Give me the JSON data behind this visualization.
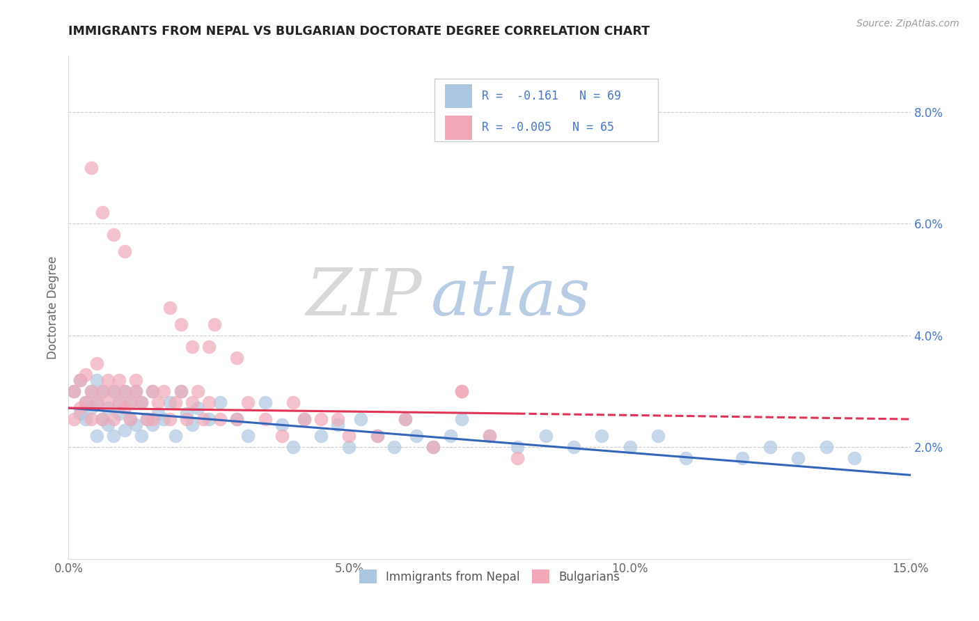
{
  "title": "IMMIGRANTS FROM NEPAL VS BULGARIAN DOCTORATE DEGREE CORRELATION CHART",
  "source_text": "Source: ZipAtlas.com",
  "ylabel": "Doctorate Degree",
  "watermark_part1": "ZIP",
  "watermark_part2": "atlas",
  "xlim": [
    0.0,
    0.15
  ],
  "ylim": [
    0.0,
    0.09
  ],
  "xticks": [
    0.0,
    0.05,
    0.1,
    0.15
  ],
  "xticklabels": [
    "0.0%",
    "5.0%",
    "10.0%",
    "15.0%"
  ],
  "yticks_right": [
    0.02,
    0.04,
    0.06,
    0.08
  ],
  "yticklabels_right": [
    "2.0%",
    "4.0%",
    "6.0%",
    "8.0%"
  ],
  "legend_r1": "R =  -0.161",
  "legend_n1": "N = 69",
  "legend_r2": "R = -0.005",
  "legend_n2": "N = 65",
  "blue_color": "#adc6e0",
  "pink_color": "#f0a8b8",
  "trend_blue": "#3366bb",
  "trend_pink": "#e03355",
  "legend_text_color": "#4477cc",
  "title_color": "#222222",
  "grid_color": "#cccccc",
  "background_color": "#ffffff",
  "nepal_x": [
    0.001,
    0.002,
    0.002,
    0.003,
    0.003,
    0.004,
    0.004,
    0.005,
    0.005,
    0.005,
    0.006,
    0.006,
    0.007,
    0.007,
    0.008,
    0.008,
    0.009,
    0.009,
    0.01,
    0.01,
    0.011,
    0.011,
    0.012,
    0.012,
    0.013,
    0.013,
    0.014,
    0.015,
    0.015,
    0.016,
    0.017,
    0.018,
    0.019,
    0.02,
    0.021,
    0.022,
    0.023,
    0.025,
    0.027,
    0.03,
    0.032,
    0.035,
    0.038,
    0.04,
    0.042,
    0.045,
    0.048,
    0.05,
    0.052,
    0.055,
    0.058,
    0.06,
    0.062,
    0.065,
    0.068,
    0.07,
    0.075,
    0.08,
    0.085,
    0.09,
    0.095,
    0.1,
    0.105,
    0.11,
    0.12,
    0.125,
    0.13,
    0.135,
    0.14
  ],
  "nepal_y": [
    0.03,
    0.026,
    0.032,
    0.025,
    0.028,
    0.027,
    0.03,
    0.022,
    0.028,
    0.032,
    0.025,
    0.03,
    0.024,
    0.027,
    0.022,
    0.03,
    0.026,
    0.028,
    0.023,
    0.03,
    0.025,
    0.028,
    0.024,
    0.03,
    0.022,
    0.028,
    0.025,
    0.03,
    0.024,
    0.026,
    0.025,
    0.028,
    0.022,
    0.03,
    0.026,
    0.024,
    0.027,
    0.025,
    0.028,
    0.025,
    0.022,
    0.028,
    0.024,
    0.02,
    0.025,
    0.022,
    0.024,
    0.02,
    0.025,
    0.022,
    0.02,
    0.025,
    0.022,
    0.02,
    0.022,
    0.025,
    0.022,
    0.02,
    0.022,
    0.02,
    0.022,
    0.02,
    0.022,
    0.018,
    0.018,
    0.02,
    0.018,
    0.02,
    0.018
  ],
  "bulg_x": [
    0.001,
    0.001,
    0.002,
    0.002,
    0.003,
    0.003,
    0.004,
    0.004,
    0.005,
    0.005,
    0.006,
    0.006,
    0.007,
    0.007,
    0.008,
    0.008,
    0.009,
    0.009,
    0.01,
    0.01,
    0.011,
    0.011,
    0.012,
    0.012,
    0.013,
    0.014,
    0.015,
    0.015,
    0.016,
    0.017,
    0.018,
    0.019,
    0.02,
    0.021,
    0.022,
    0.023,
    0.024,
    0.025,
    0.027,
    0.03,
    0.032,
    0.035,
    0.038,
    0.04,
    0.042,
    0.045,
    0.048,
    0.05,
    0.055,
    0.06,
    0.065,
    0.07,
    0.075,
    0.08,
    0.01,
    0.02,
    0.025,
    0.03,
    0.004,
    0.006,
    0.008,
    0.018,
    0.022,
    0.026,
    0.07
  ],
  "bulg_y": [
    0.03,
    0.025,
    0.032,
    0.027,
    0.033,
    0.028,
    0.03,
    0.025,
    0.035,
    0.028,
    0.03,
    0.025,
    0.028,
    0.032,
    0.03,
    0.025,
    0.028,
    0.032,
    0.027,
    0.03,
    0.028,
    0.025,
    0.03,
    0.032,
    0.028,
    0.025,
    0.03,
    0.025,
    0.028,
    0.03,
    0.025,
    0.028,
    0.03,
    0.025,
    0.028,
    0.03,
    0.025,
    0.028,
    0.025,
    0.025,
    0.028,
    0.025,
    0.022,
    0.028,
    0.025,
    0.025,
    0.025,
    0.022,
    0.022,
    0.025,
    0.02,
    0.03,
    0.022,
    0.018,
    0.055,
    0.042,
    0.038,
    0.036,
    0.07,
    0.062,
    0.058,
    0.045,
    0.038,
    0.042,
    0.03
  ],
  "trend_blue_x0": 0.0,
  "trend_blue_x1": 0.15,
  "trend_blue_y0": 0.027,
  "trend_blue_y1": 0.015,
  "trend_pink_x0": 0.0,
  "trend_pink_x1": 0.08,
  "trend_pink_y0": 0.027,
  "trend_pink_y1": 0.026,
  "trend_pink_dash_x0": 0.08,
  "trend_pink_dash_x1": 0.15,
  "trend_pink_dash_y0": 0.026,
  "trend_pink_dash_y1": 0.025
}
